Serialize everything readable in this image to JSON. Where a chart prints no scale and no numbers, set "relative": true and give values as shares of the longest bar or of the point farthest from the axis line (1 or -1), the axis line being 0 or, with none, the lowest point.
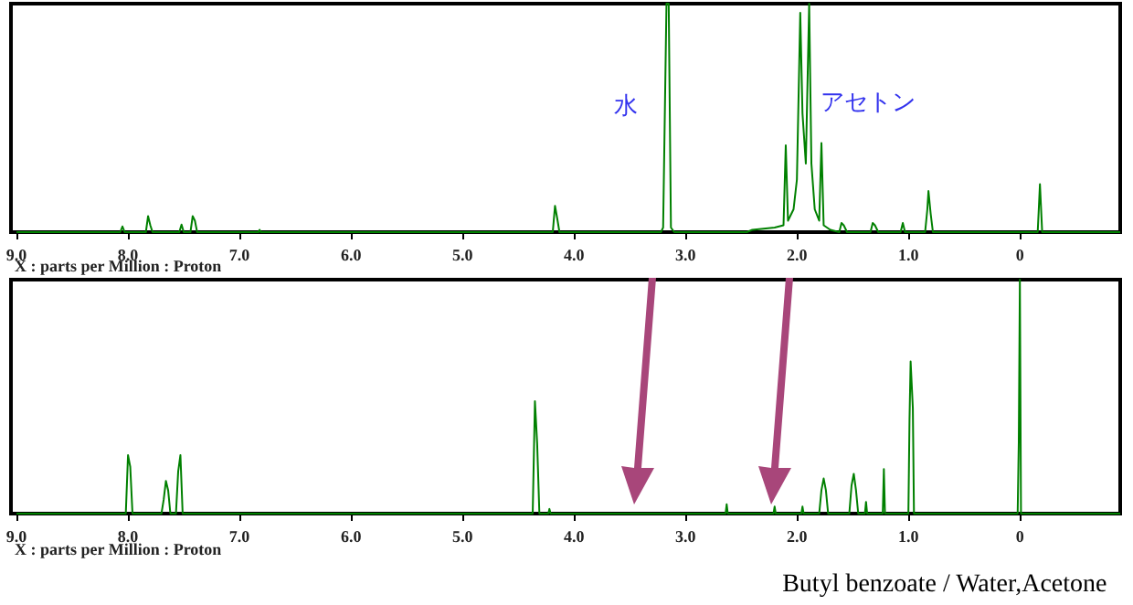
{
  "chart_data": [
    {
      "type": "line",
      "relative": true,
      "xlabel": "X : parts per Million : Proton",
      "xlim": [
        9.05,
        -0.9
      ],
      "xticks": [
        {
          "value": 9,
          "label": "9.0"
        },
        {
          "value": 8,
          "label": "8.0"
        },
        {
          "value": 7,
          "label": "7.0"
        },
        {
          "value": 6,
          "label": "6.0"
        },
        {
          "value": 5,
          "label": "5.0"
        },
        {
          "value": 4,
          "label": "4.0"
        },
        {
          "value": 3,
          "label": "3.0"
        },
        {
          "value": 2,
          "label": "2.0"
        },
        {
          "value": 1,
          "label": "1.0"
        },
        0
      ],
      "grid": false,
      "marker": "none",
      "line_style": "solid",
      "annotations": [
        "水",
        "アセトン"
      ],
      "series": [
        {
          "color": "#008000",
          "x": [
            9.0,
            8.07,
            8.05,
            8.03,
            7.84,
            7.82,
            7.8,
            7.78,
            7.54,
            7.52,
            7.5,
            7.44,
            7.42,
            7.4,
            7.38,
            6.83,
            6.82,
            6.81,
            4.19,
            4.17,
            4.15,
            4.13,
            3.22,
            3.2,
            3.17,
            3.15,
            3.13,
            3.1,
            2.45,
            2.4,
            2.2,
            2.12,
            2.1,
            2.08,
            2.03,
            2.0,
            1.97,
            1.95,
            1.92,
            1.89,
            1.87,
            1.84,
            1.8,
            1.78,
            1.76,
            1.7,
            1.62,
            1.6,
            1.58,
            1.55,
            1.34,
            1.32,
            1.3,
            1.27,
            1.07,
            1.05,
            1.03,
            0.85,
            0.83,
            0.82,
            0.8,
            0.78,
            -0.16,
            -0.18,
            -0.2,
            -0.9
          ],
          "values": [
            0,
            0,
            0.025,
            0,
            0,
            0.07,
            0.03,
            0,
            0,
            0.033,
            0,
            0,
            0.07,
            0.05,
            0,
            0,
            0.01,
            0,
            0,
            0.115,
            0.06,
            0,
            0,
            0.02,
            1,
            1,
            0.02,
            0,
            0,
            0.01,
            0.02,
            0.03,
            0.38,
            0.05,
            0.1,
            0.23,
            0.96,
            0.52,
            0.3,
            1,
            0.3,
            0.1,
            0.05,
            0.39,
            0.03,
            0.01,
            0,
            0.04,
            0.03,
            0,
            0,
            0.04,
            0.03,
            0,
            0,
            0.04,
            0,
            0,
            0.1,
            0.18,
            0.08,
            0,
            0,
            0.21,
            0,
            0
          ]
        }
      ]
    },
    {
      "type": "line",
      "relative": true,
      "xlabel": "X : parts per Million : Proton",
      "xlim": [
        9.05,
        -0.9
      ],
      "xticks": [
        {
          "value": 9,
          "label": "9.0"
        },
        {
          "value": 8,
          "label": "8.0"
        },
        {
          "value": 7,
          "label": "7.0"
        },
        {
          "value": 6,
          "label": "6.0"
        },
        {
          "value": 5,
          "label": "5.0"
        },
        {
          "value": 4,
          "label": "4.0"
        },
        {
          "value": 3,
          "label": "3.0"
        },
        {
          "value": 2,
          "label": "2.0"
        },
        {
          "value": 1,
          "label": "1.0"
        },
        0
      ],
      "grid": false,
      "marker": "none",
      "line_style": "solid",
      "annotations": [
        "Butyl benzoate / Water,Acetone"
      ],
      "series": [
        {
          "color": "#008000",
          "x": [
            9.0,
            8.02,
            8.0,
            7.98,
            7.96,
            7.7,
            7.68,
            7.66,
            7.64,
            7.62,
            7.57,
            7.55,
            7.53,
            7.51,
            4.37,
            4.35,
            4.33,
            4.31,
            4.23,
            4.22,
            4.21,
            2.64,
            2.63,
            2.62,
            2.21,
            2.2,
            2.19,
            1.96,
            1.95,
            1.94,
            1.8,
            1.78,
            1.76,
            1.74,
            1.72,
            1.53,
            1.51,
            1.49,
            1.47,
            1.45,
            1.39,
            1.38,
            1.37,
            1.23,
            1.22,
            1.21,
            1.0,
            0.99,
            0.98,
            0.96,
            0.95,
            0.02,
            0.01,
            0.0,
            -0.01,
            -0.9
          ],
          "values": [
            0,
            0,
            0.25,
            0.2,
            0,
            0,
            0.06,
            0.14,
            0.1,
            0,
            0,
            0.18,
            0.25,
            0,
            0,
            0.48,
            0.3,
            0,
            0,
            0.02,
            0,
            0,
            0.04,
            0,
            0,
            0.03,
            0,
            0,
            0.03,
            0,
            0,
            0.1,
            0.15,
            0.1,
            0,
            0,
            0.12,
            0.17,
            0.1,
            0,
            0,
            0.05,
            0,
            0,
            0.19,
            0,
            0,
            0.4,
            0.65,
            0.45,
            0,
            0,
            0.3,
            1,
            0,
            0
          ]
        }
      ]
    }
  ]
}
